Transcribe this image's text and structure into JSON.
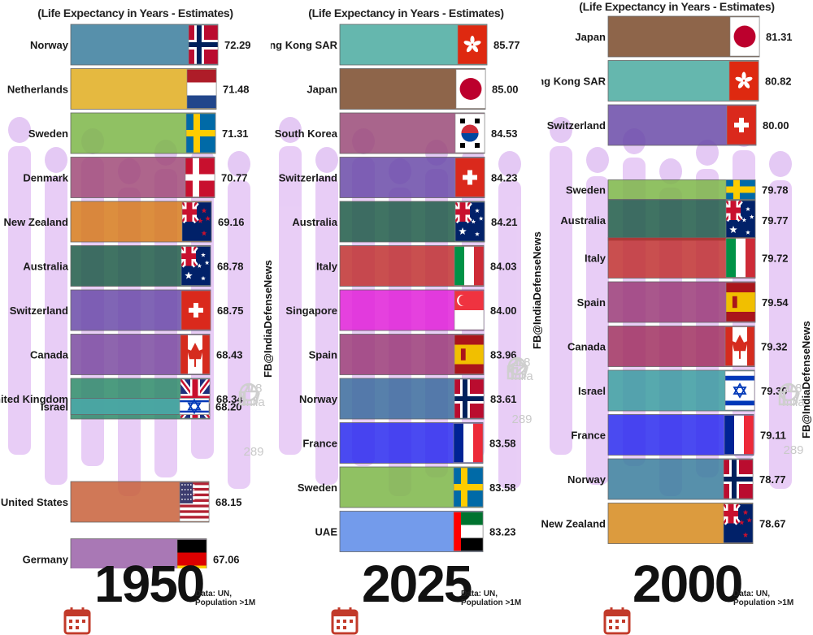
{
  "chart_data": [
    {
      "type": "bar",
      "orientation": "horizontal",
      "subtitle": "(Life Expectancy in Years - Estimates)",
      "year": "1950",
      "source": "Data: UN, Population >1M",
      "categories": [
        "Norway",
        "Netherlands",
        "Sweden",
        "Denmark",
        "New Zealand",
        "Australia",
        "Switzerland",
        "Canada",
        "United Kingdom",
        "Israel",
        "United States",
        "Germany"
      ],
      "values": [
        72.29,
        71.48,
        71.31,
        70.77,
        69.16,
        68.78,
        68.75,
        68.43,
        68.34,
        68.2,
        68.15,
        67.06
      ],
      "value_labels": [
        "72.29",
        "71.48",
        "71.31",
        "70.77",
        "69.16",
        "68.78",
        "68.75",
        "68.43",
        "68.34",
        "68.20",
        "68.15",
        "67.06"
      ],
      "colors": [
        "#3a7d9c",
        "#e0ad1f",
        "#7cb648",
        "#a04a78",
        "#d67a1c",
        "#1f5a48",
        "#6a4aa8",
        "#7a4aa0",
        "#2d8a68",
        "#4aa8a8",
        "#c8603a",
        "#9a60a8"
      ],
      "flags": [
        "norway-flag",
        "netherlands-flag",
        "sweden-flag",
        "denmark-flag",
        "new-zealand-flag",
        "australia-flag",
        "switzerland-flag",
        "canada-flag",
        "united-kingdom-flag",
        "israel-flag",
        "united-states-flag",
        "germany-flag"
      ]
    },
    {
      "type": "bar",
      "orientation": "horizontal",
      "subtitle": "(Life Expectancy in Years - Estimates)",
      "year": "2025",
      "source": "Data: UN, Population >1M",
      "categories": [
        "Hong Kong SAR",
        "Japan",
        "South Korea",
        "Switzerland",
        "Australia",
        "Italy",
        "Singapore",
        "Spain",
        "Norway",
        "France",
        "Sweden",
        "UAE"
      ],
      "values": [
        85.77,
        85.0,
        84.53,
        84.23,
        84.21,
        84.03,
        84.0,
        83.96,
        83.61,
        83.58,
        83.58,
        83.23
      ],
      "value_labels": [
        "85.77",
        "85.00",
        "84.53",
        "84.23",
        "84.21",
        "84.03",
        "84.00",
        "83.96",
        "83.61",
        "83.58",
        "83.58",
        "83.23"
      ],
      "colors": [
        "#4aaaa0",
        "#7a4a2a",
        "#9a4a78",
        "#6a4aa8",
        "#1f5a48",
        "#c03030",
        "#e020d8",
        "#9a3a78",
        "#3a6a9c",
        "#2a2aee",
        "#7cb648",
        "#5a8ae8"
      ],
      "flags": [
        "hong-kong-flag",
        "japan-flag",
        "south-korea-flag",
        "switzerland-flag",
        "australia-flag",
        "italy-flag",
        "singapore-flag",
        "spain-flag",
        "norway-flag",
        "france-flag",
        "sweden-flag",
        "uae-flag"
      ]
    },
    {
      "type": "bar",
      "orientation": "horizontal",
      "subtitle": "(Life Expectancy in Years - Estimates)",
      "year": "2000",
      "source": "Data: UN, Population >1M",
      "categories": [
        "Japan",
        "Hong Kong SAR",
        "Switzerland",
        "Sweden",
        "Australia",
        "Italy",
        "Spain",
        "Canada",
        "Israel",
        "France",
        "Norway",
        "New Zealand"
      ],
      "values": [
        81.31,
        80.82,
        80.0,
        79.78,
        79.77,
        79.72,
        79.54,
        79.32,
        79.3,
        79.11,
        78.77,
        78.67
      ],
      "value_labels": [
        "81.31",
        "80.82",
        "80.00",
        "79.78",
        "79.77",
        "79.72",
        "79.54",
        "79.32",
        "79.30",
        "79.11",
        "78.77",
        "78.67"
      ],
      "colors": [
        "#7a4a2a",
        "#4aaaa0",
        "#6a4aa8",
        "#7cb648",
        "#1f5a48",
        "#c03030",
        "#9a3a78",
        "#a03060",
        "#3a9aa0",
        "#2a2aee",
        "#3a7d9c",
        "#d68a1c"
      ],
      "flags": [
        "japan-flag",
        "hong-kong-flag",
        "switzerland-flag",
        "sweden-flag",
        "australia-flag",
        "italy-flag",
        "spain-flag",
        "canada-flag",
        "israel-flag",
        "france-flag",
        "norway-flag",
        "new-zealand-flag"
      ]
    }
  ],
  "watermark": "FB@IndiaDefenseNews",
  "social": {
    "likes": "1.8",
    "likes_unit": "mila",
    "comments": "289"
  }
}
